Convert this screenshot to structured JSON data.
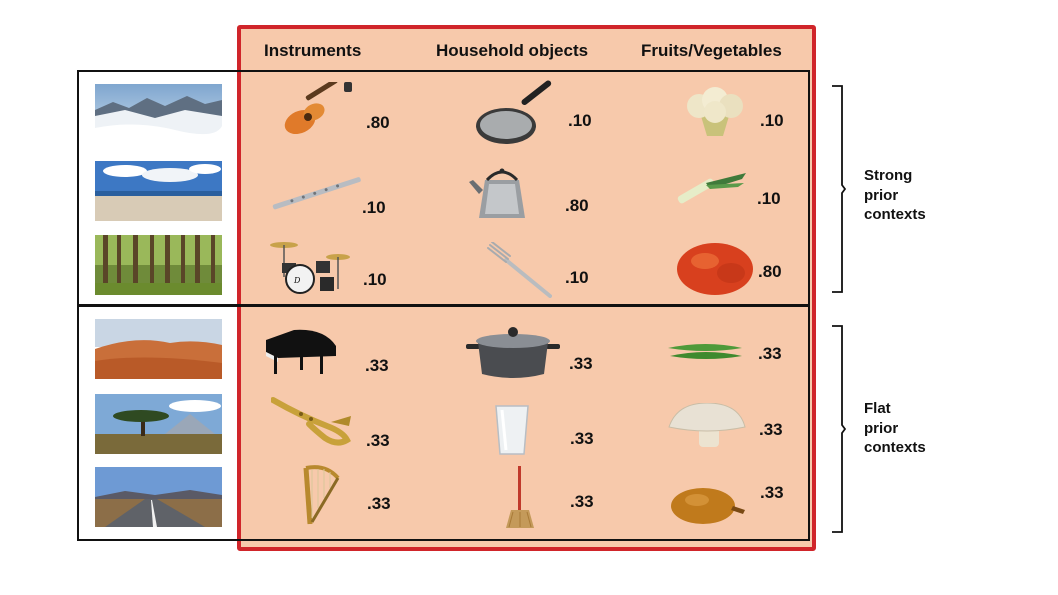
{
  "columns": [
    "Instruments",
    "Household objects",
    "Fruits/Vegetables"
  ],
  "groups": {
    "strong": {
      "label": [
        "Strong",
        "prior",
        "contexts"
      ]
    },
    "flat": {
      "label": [
        "Flat",
        "prior",
        "contexts"
      ]
    }
  },
  "rows": [
    {
      "scene": "snowy-mountains",
      "items": [
        {
          "name": "guitar",
          "prob": ".80"
        },
        {
          "name": "frying-pan",
          "prob": ".10"
        },
        {
          "name": "cauliflower",
          "prob": ".10"
        }
      ]
    },
    {
      "scene": "beach",
      "items": [
        {
          "name": "flute",
          "prob": ".10"
        },
        {
          "name": "kettle",
          "prob": ".80"
        },
        {
          "name": "leek",
          "prob": ".10"
        }
      ]
    },
    {
      "scene": "forest",
      "items": [
        {
          "name": "drum-kit",
          "prob": ".10"
        },
        {
          "name": "fork",
          "prob": ".10"
        },
        {
          "name": "tomato",
          "prob": ".80"
        }
      ]
    },
    {
      "scene": "desert",
      "items": [
        {
          "name": "grand-piano",
          "prob": ".33"
        },
        {
          "name": "pot",
          "prob": ".33"
        },
        {
          "name": "green-beans",
          "prob": ".33"
        }
      ]
    },
    {
      "scene": "savanna",
      "items": [
        {
          "name": "saxophone",
          "prob": ".33"
        },
        {
          "name": "glass",
          "prob": ".33"
        },
        {
          "name": "mushroom",
          "prob": ".33"
        }
      ]
    },
    {
      "scene": "road",
      "items": [
        {
          "name": "harp",
          "prob": ".33"
        },
        {
          "name": "broom",
          "prob": ".33"
        },
        {
          "name": "onion",
          "prob": ".33"
        }
      ]
    }
  ]
}
